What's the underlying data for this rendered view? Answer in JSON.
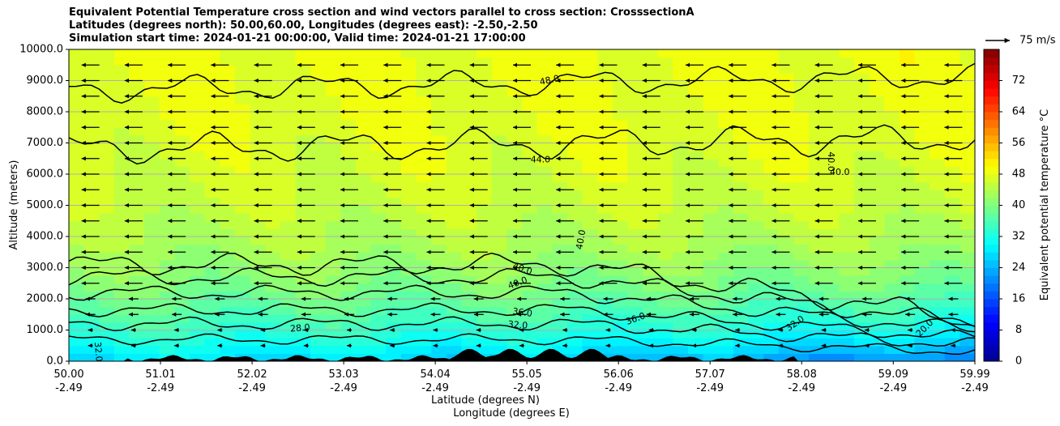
{
  "title_lines": [
    "Equivalent Potential Temperature cross section and wind vectors parallel to cross section: CrosssectionA",
    "Latitudes (degrees north): 50.00,60.00, Longitudes (degrees east): -2.50,-2.50",
    "Simulation start time: 2024-01-21 00:00:00, Valid time: 2024-01-21 17:00:00"
  ],
  "colors": {
    "terrain": "#000000",
    "contour": "#000000",
    "grid": "#b0b0b0",
    "colormap": [
      "#00008f",
      "#0000ff",
      "#0080ff",
      "#00ffff",
      "#80ff80",
      "#ffff00",
      "#ff8000",
      "#ff0000",
      "#800000"
    ]
  },
  "chart_data": {
    "type": "cross-section",
    "x": [
      50.0,
      51.01,
      52.02,
      53.03,
      54.04,
      55.05,
      56.06,
      57.07,
      58.08,
      59.09,
      59.99
    ],
    "xtick_labels": [
      {
        "lat": "50.00",
        "lon": "-2.49"
      },
      {
        "lat": "51.01",
        "lon": "-2.49"
      },
      {
        "lat": "52.02",
        "lon": "-2.49"
      },
      {
        "lat": "53.03",
        "lon": "-2.49"
      },
      {
        "lat": "54.04",
        "lon": "-2.49"
      },
      {
        "lat": "55.05",
        "lon": "-2.49"
      },
      {
        "lat": "56.06",
        "lon": "-2.49"
      },
      {
        "lat": "57.07",
        "lon": "-2.49"
      },
      {
        "lat": "58.08",
        "lon": "-2.49"
      },
      {
        "lat": "59.09",
        "lon": "-2.49"
      },
      {
        "lat": "59.99",
        "lon": "-2.49"
      }
    ],
    "xlabel": "Latitude (degrees N)",
    "xlabel2": "Longitude (degrees E)",
    "ylabel": "Altitude (meters)",
    "ylim": [
      0,
      10000
    ],
    "yticks": [
      0,
      1000,
      2000,
      3000,
      4000,
      5000,
      6000,
      7000,
      8000,
      9000,
      10000
    ],
    "ytick_labels": [
      "0.0",
      "1000.0",
      "2000.0",
      "3000.0",
      "4000.0",
      "5000.0",
      "6000.0",
      "7000.0",
      "8000.0",
      "9000.0",
      "10000.0"
    ],
    "grid": true,
    "colorbar": {
      "label": "Equivalent potential temperature °C",
      "range": [
        0,
        80
      ],
      "ticks": [
        0,
        8,
        16,
        24,
        32,
        40,
        48,
        56,
        64,
        72
      ],
      "tick_labels": [
        "0",
        "8",
        "16",
        "24",
        "32",
        "40",
        "48",
        "56",
        "64",
        "72"
      ]
    },
    "wind_key": {
      "label": "75 m/s",
      "speed": 75
    },
    "wind_rows_alt": [
      500,
      1000,
      1500,
      2000,
      2500,
      3000,
      3500,
      4000,
      4500,
      5000,
      5500,
      6000,
      6500,
      7000,
      7500,
      8000,
      8500,
      9000,
      9500
    ],
    "contour_labels": [
      {
        "text": "48.0",
        "lat": 55.3,
        "alt": 9000,
        "rot": -12
      },
      {
        "text": "44.0",
        "lat": 55.2,
        "alt": 6450,
        "rot": 0
      },
      {
        "text": "40.0",
        "lat": 58.4,
        "alt": 6400,
        "rot": 90
      },
      {
        "text": "40.0",
        "lat": 58.5,
        "alt": 6050,
        "rot": 0
      },
      {
        "text": "40.0",
        "lat": 55.65,
        "alt": 3900,
        "rot": -80
      },
      {
        "text": "40.0",
        "lat": 55.0,
        "alt": 2950,
        "rot": 20
      },
      {
        "text": "40.0",
        "lat": 54.95,
        "alt": 2500,
        "rot": -20
      },
      {
        "text": "36.0",
        "lat": 55.0,
        "alt": 1550,
        "rot": 8
      },
      {
        "text": "32.0",
        "lat": 54.95,
        "alt": 1150,
        "rot": 5
      },
      {
        "text": "36.0",
        "lat": 56.25,
        "alt": 1350,
        "rot": -20
      },
      {
        "text": "28.0",
        "lat": 52.55,
        "alt": 1050,
        "rot": -5
      },
      {
        "text": "32.0",
        "lat": 58.01,
        "alt": 1200,
        "rot": -35
      },
      {
        "text": "20.0",
        "lat": 59.44,
        "alt": 1050,
        "rot": -45
      },
      {
        "text": "32.0",
        "lat": 50.32,
        "alt": 300,
        "rot": 85
      }
    ]
  }
}
